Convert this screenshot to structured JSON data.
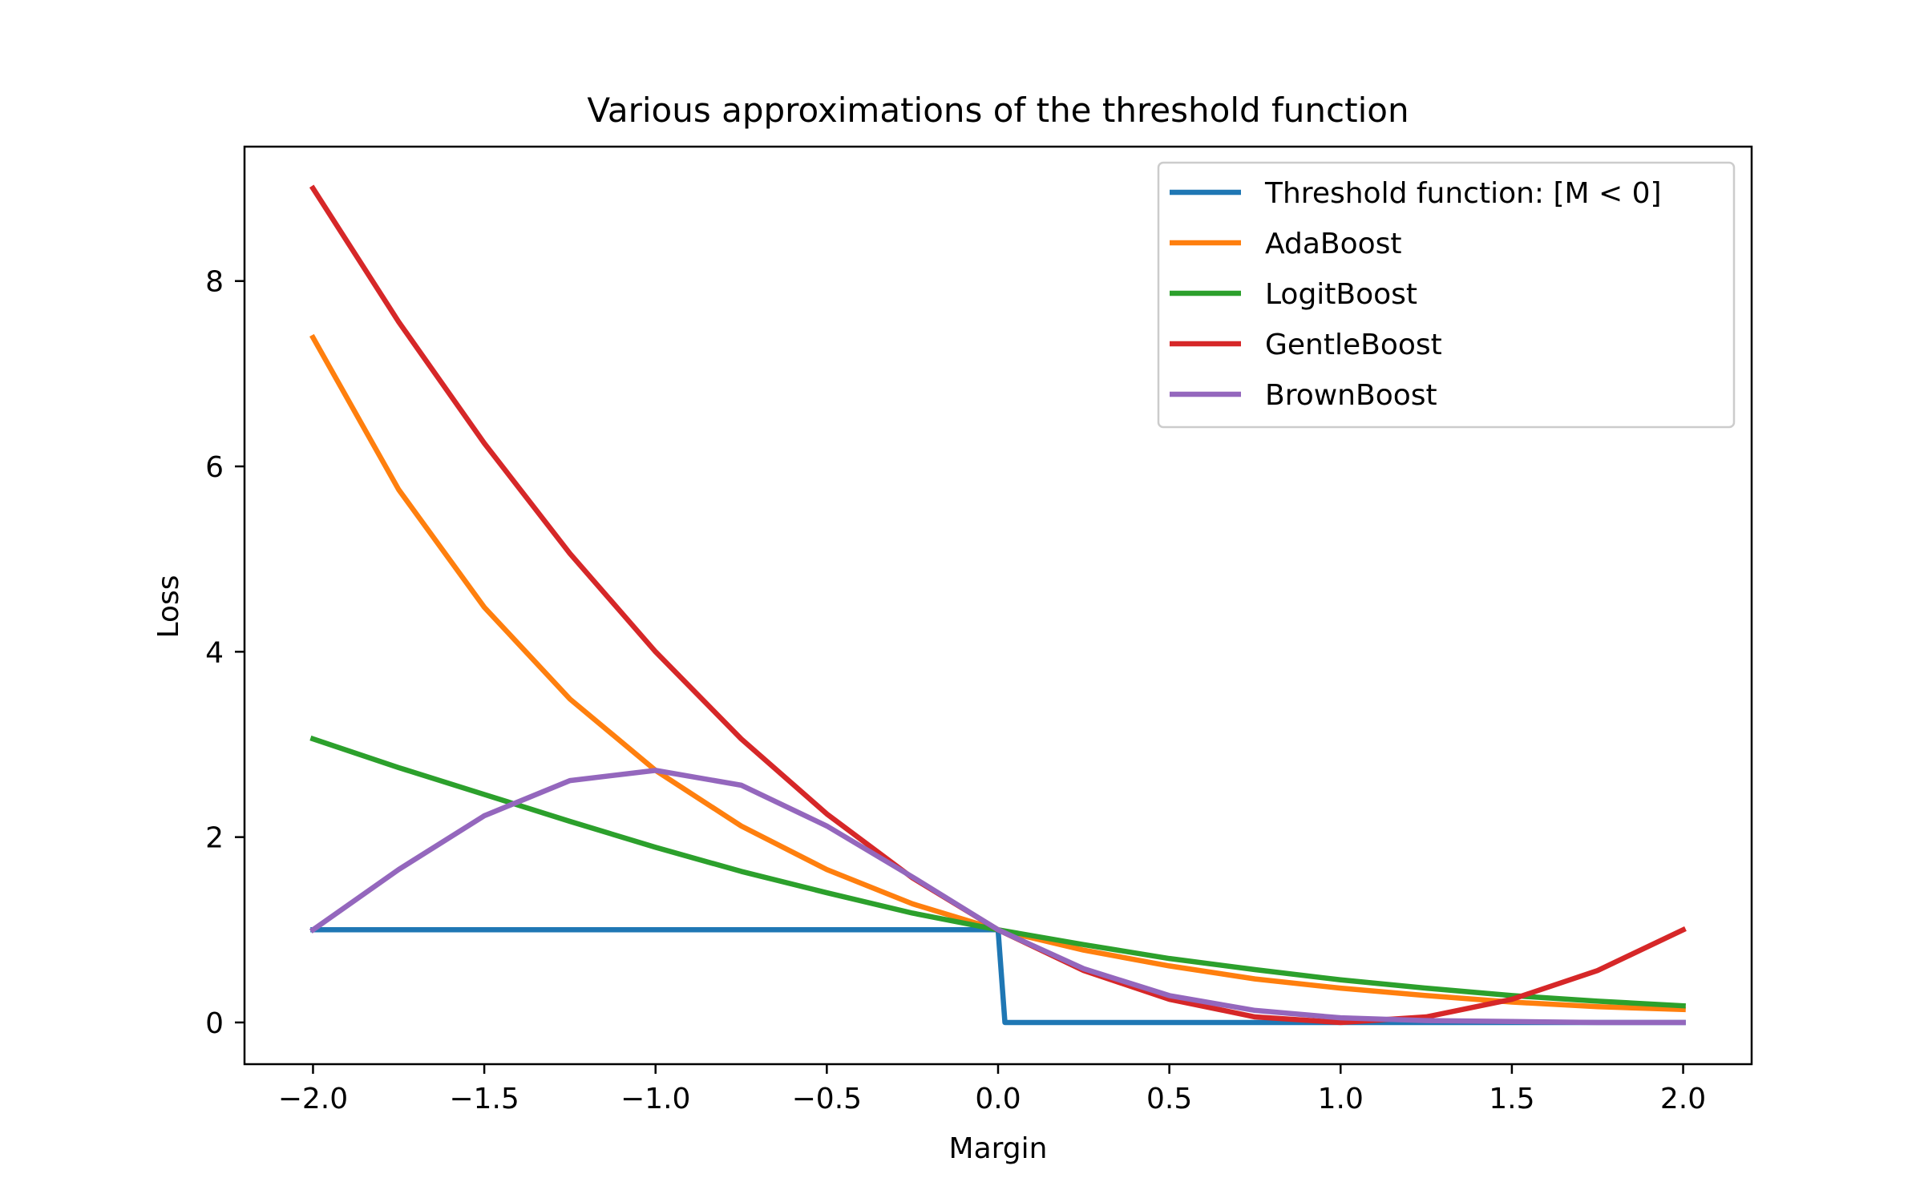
{
  "chart_data": {
    "type": "line",
    "title": "Various approximations of the threshold function",
    "xlabel": "Margin",
    "ylabel": "Loss",
    "xlim": [
      -2.2,
      2.2
    ],
    "ylim": [
      -0.45,
      9.45
    ],
    "xticks": [
      -2.0,
      -1.5,
      -1.0,
      -0.5,
      0.0,
      0.5,
      1.0,
      1.5,
      2.0
    ],
    "xtick_labels": [
      "−2.0",
      "−1.5",
      "−1.0",
      "−0.5",
      "0.0",
      "0.5",
      "1.0",
      "1.5",
      "2.0"
    ],
    "yticks": [
      0,
      2,
      4,
      6,
      8
    ],
    "ytick_labels": [
      "0",
      "2",
      "4",
      "6",
      "8"
    ],
    "grid": false,
    "legend_position": "top-right",
    "series": [
      {
        "name": "Threshold function: [M < 0]",
        "color": "#1f77b4",
        "x": [
          -2.0,
          -1.5,
          -1.0,
          -0.5,
          0.0,
          0.02,
          0.5,
          1.0,
          1.5,
          2.0
        ],
        "y": [
          1,
          1,
          1,
          1,
          1,
          0,
          0,
          0,
          0,
          0
        ]
      },
      {
        "name": "AdaBoost",
        "color": "#ff7f0e",
        "x": [
          -2.0,
          -1.75,
          -1.5,
          -1.25,
          -1.0,
          -0.75,
          -0.5,
          -0.25,
          0.0,
          0.25,
          0.5,
          0.75,
          1.0,
          1.25,
          1.5,
          1.75,
          2.0
        ],
        "y": [
          7.39,
          5.75,
          4.48,
          3.49,
          2.72,
          2.12,
          1.65,
          1.28,
          1.0,
          0.78,
          0.61,
          0.47,
          0.37,
          0.29,
          0.22,
          0.17,
          0.14
        ]
      },
      {
        "name": "LogitBoost",
        "color": "#2ca02c",
        "x": [
          -2.0,
          -1.75,
          -1.5,
          -1.25,
          -1.0,
          -0.75,
          -0.5,
          -0.25,
          0.0,
          0.25,
          0.5,
          0.75,
          1.0,
          1.25,
          1.5,
          1.75,
          2.0
        ],
        "y": [
          3.06,
          2.75,
          2.46,
          2.17,
          1.89,
          1.63,
          1.4,
          1.18,
          1.0,
          0.84,
          0.69,
          0.57,
          0.46,
          0.37,
          0.29,
          0.23,
          0.18
        ]
      },
      {
        "name": "GentleBoost",
        "color": "#d62728",
        "x": [
          -2.0,
          -1.75,
          -1.5,
          -1.25,
          -1.0,
          -0.75,
          -0.5,
          -0.25,
          0.0,
          0.25,
          0.5,
          0.75,
          1.0,
          1.25,
          1.5,
          1.75,
          2.0
        ],
        "y": [
          9.0,
          7.56,
          6.25,
          5.06,
          4.0,
          3.06,
          2.25,
          1.56,
          1.0,
          0.56,
          0.25,
          0.06,
          0.0,
          0.06,
          0.25,
          0.56,
          1.0
        ]
      },
      {
        "name": "BrownBoost",
        "color": "#9467bd",
        "x": [
          -2.0,
          -1.75,
          -1.5,
          -1.25,
          -1.0,
          -0.75,
          -0.5,
          -0.25,
          0.0,
          0.25,
          0.5,
          0.75,
          1.0,
          1.25,
          1.5,
          1.75,
          2.0
        ],
        "y": [
          1.0,
          1.65,
          2.23,
          2.61,
          2.72,
          2.56,
          2.12,
          1.57,
          1.0,
          0.58,
          0.29,
          0.13,
          0.05,
          0.02,
          0.01,
          0.0,
          0.0
        ]
      }
    ]
  }
}
